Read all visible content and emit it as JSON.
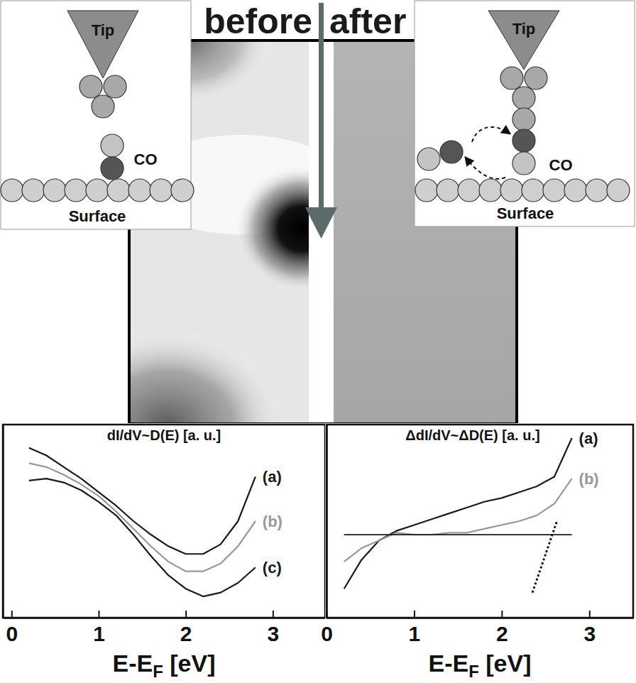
{
  "header": {
    "before": "before",
    "after": "after"
  },
  "insets": [
    {
      "tip": "Tip",
      "molecule": "CO",
      "surface": "Surface"
    },
    {
      "tip": "Tip",
      "molecule": "CO",
      "surface": "Surface"
    }
  ],
  "chart_data": [
    {
      "type": "line",
      "title": "dI/dV~D(E) [a. u.]",
      "x_label": "E-EF [eV]",
      "xlim": [
        -0.1,
        3.6
      ],
      "xticks": [
        0,
        1,
        2,
        3
      ],
      "ylim": [
        0,
        1
      ],
      "yticks": [],
      "tick_labels": "x",
      "x": [
        0.2,
        0.4,
        0.6,
        0.8,
        1.0,
        1.2,
        1.4,
        1.6,
        1.8,
        2.0,
        2.2,
        2.4,
        2.6,
        2.8
      ],
      "series": [
        {
          "name": "(a)",
          "color": "#1a1a1a",
          "line_style": "solid",
          "values": [
            0.88,
            0.84,
            0.78,
            0.72,
            0.65,
            0.58,
            0.5,
            0.43,
            0.37,
            0.33,
            0.33,
            0.38,
            0.5,
            0.73
          ]
        },
        {
          "name": "(b)",
          "color": "#999999",
          "line_style": "solid",
          "values": [
            0.8,
            0.78,
            0.74,
            0.69,
            0.63,
            0.55,
            0.46,
            0.37,
            0.29,
            0.24,
            0.24,
            0.28,
            0.37,
            0.5
          ]
        },
        {
          "name": "(c)",
          "color": "#1a1a1a",
          "line_style": "solid",
          "values": [
            0.71,
            0.72,
            0.7,
            0.66,
            0.6,
            0.53,
            0.43,
            0.32,
            0.22,
            0.15,
            0.11,
            0.13,
            0.18,
            0.26
          ]
        }
      ]
    },
    {
      "type": "line",
      "title": "ΔdI/dV~ΔD(E) [a. u.]",
      "x_label": "E-EF [eV]",
      "xlim": [
        0,
        3.5
      ],
      "xticks": [
        0,
        1,
        2,
        3
      ],
      "ylim": [
        0,
        1
      ],
      "yticks": [],
      "tick_labels": "x",
      "x": [
        0.2,
        0.4,
        0.6,
        0.8,
        1.0,
        1.2,
        1.4,
        1.6,
        1.8,
        2.0,
        2.2,
        2.4,
        2.6,
        2.8
      ],
      "series": [
        {
          "name": "(a)",
          "color": "#1a1a1a",
          "line_style": "solid",
          "values": [
            0.15,
            0.3,
            0.4,
            0.45,
            0.48,
            0.51,
            0.54,
            0.57,
            0.6,
            0.62,
            0.65,
            0.68,
            0.73,
            0.93
          ]
        },
        {
          "name": "(b)",
          "color": "#999999",
          "line_style": "solid",
          "values": [
            0.29,
            0.36,
            0.4,
            0.44,
            0.43,
            0.43,
            0.44,
            0.44,
            0.46,
            0.48,
            0.5,
            0.53,
            0.59,
            0.72
          ]
        }
      ],
      "lines": [
        {
          "x": [
            0.2,
            2.8
          ],
          "y": [
            0.43,
            0.43
          ],
          "color": "#1a1a1a",
          "line_style": "solid"
        },
        {
          "x": [
            2.35,
            2.63
          ],
          "y": [
            0.13,
            0.5
          ],
          "color": "#1a1a1a",
          "line_style": "dotted"
        }
      ]
    }
  ]
}
